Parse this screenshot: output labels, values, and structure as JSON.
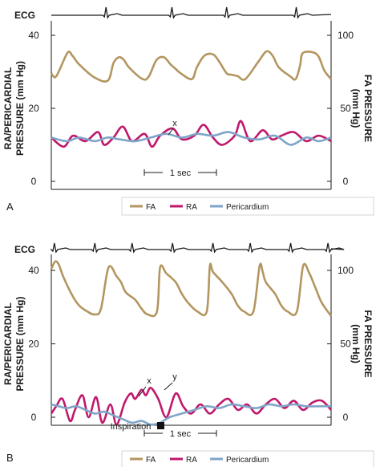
{
  "chart_data": [
    {
      "panel_label": "A",
      "type": "line",
      "time_scale_label": "1 sec",
      "ecg_label": "ECG",
      "left_axis": {
        "label_line1": "RA/PERICARDIAL",
        "label_line2": "PRESSURE (mm Hg)",
        "ticks": [
          "0",
          "20",
          "40"
        ],
        "ylim": [
          0,
          40
        ]
      },
      "right_axis": {
        "label_line1": "FA PRESSURE",
        "label_line2": "(mm Hg)",
        "ticks": [
          "0",
          "50",
          "100"
        ],
        "ylim": [
          0,
          100
        ]
      },
      "annotations": [
        "x"
      ],
      "legend": [
        "FA",
        "RA",
        "Pericardium"
      ],
      "series": [
        {
          "name": "FA",
          "axis": "right",
          "color": "#b39660",
          "t": [
            0.0,
            0.08,
            0.26,
            0.34,
            0.45,
            0.7,
            0.91,
            1.0,
            1.09,
            1.17,
            1.25,
            1.47,
            1.57,
            1.69,
            1.81,
            1.92,
            2.0,
            2.08,
            2.26,
            2.34,
            2.46,
            2.6,
            2.7,
            2.82,
            2.9,
            3.0,
            3.12,
            3.33,
            3.46,
            3.56,
            3.66,
            3.84,
            3.93,
            4.0,
            4.05,
            4.27,
            4.39,
            4.5
          ],
          "values": [
            74,
            72,
            88,
            86,
            80,
            71,
            69,
            81,
            85,
            83,
            78,
            70,
            72,
            83,
            85,
            80,
            77,
            74,
            70,
            78,
            86,
            87,
            82,
            74,
            73,
            72,
            70,
            82,
            89,
            86,
            78,
            72,
            70,
            79,
            88,
            87,
            76,
            70
          ]
        },
        {
          "name": "RA",
          "axis": "left",
          "color": "#c0186c",
          "t": [
            0.0,
            0.2,
            0.35,
            0.55,
            0.75,
            0.85,
            1.0,
            1.15,
            1.3,
            1.5,
            1.62,
            1.75,
            1.95,
            2.1,
            2.3,
            2.45,
            2.6,
            2.75,
            2.95,
            3.05,
            3.2,
            3.4,
            3.55,
            3.7,
            3.9,
            4.1,
            4.3,
            4.5
          ],
          "values": [
            12,
            9.5,
            12.5,
            11,
            13.5,
            10,
            12,
            15,
            11,
            13,
            9.5,
            12.5,
            14.5,
            11.5,
            12.5,
            15.5,
            12,
            10,
            12.5,
            16.5,
            11,
            14,
            11.5,
            12.5,
            13.5,
            11,
            12.5,
            11
          ]
        },
        {
          "name": "Pericardium",
          "axis": "left",
          "color": "#7fa5c8",
          "t": [
            0.0,
            0.25,
            0.45,
            0.7,
            0.9,
            1.1,
            1.35,
            1.6,
            1.85,
            2.1,
            2.35,
            2.6,
            2.85,
            3.1,
            3.35,
            3.6,
            3.85,
            4.1,
            4.3,
            4.5
          ],
          "values": [
            12,
            11,
            12,
            11,
            12,
            11.5,
            11,
            12,
            13,
            12,
            13,
            12.5,
            13.5,
            12,
            11.5,
            12.5,
            10,
            12,
            11,
            12
          ]
        }
      ]
    },
    {
      "panel_label": "B",
      "type": "line",
      "time_scale_label": "1 sec",
      "ecg_label": "ECG",
      "left_axis": {
        "label_line1": "RA/PERICARDIAL",
        "label_line2": "PRESSURE (mm Hg)",
        "ticks": [
          "0",
          "20",
          "40"
        ],
        "ylim": [
          0,
          40
        ]
      },
      "right_axis": {
        "label_line1": "FA PRESSURE",
        "label_line2": "(mm Hg)",
        "ticks": [
          "0",
          "50",
          "100"
        ],
        "ylim": [
          0,
          100
        ]
      },
      "annotations": [
        "x",
        "y",
        "Inspiration"
      ],
      "legend": [
        "FA",
        "RA",
        "Pericardium"
      ],
      "series": [
        {
          "name": "FA",
          "axis": "right",
          "color": "#b39660",
          "t": [
            0.0,
            0.06,
            0.12,
            0.2,
            0.35,
            0.45,
            0.58,
            0.7,
            0.8,
            0.92,
            1.05,
            1.12,
            1.2,
            1.35,
            1.45,
            1.55,
            1.7,
            1.75,
            1.85,
            2.0,
            2.1,
            2.2,
            2.35,
            2.5,
            2.55,
            2.6,
            2.75,
            2.9,
            3.0,
            3.1,
            3.25,
            3.35,
            3.4,
            3.45,
            3.6,
            3.7,
            3.8,
            3.95,
            4.05,
            4.15,
            4.25,
            4.35,
            4.5
          ],
          "values": [
            101,
            106,
            104,
            95,
            82,
            76,
            72,
            70,
            74,
            102,
            96,
            92,
            85,
            80,
            74,
            70,
            72,
            102,
            98,
            92,
            84,
            78,
            72,
            72,
            103,
            99,
            92,
            84,
            76,
            72,
            72,
            103,
            99,
            92,
            84,
            76,
            72,
            72,
            103,
            98,
            88,
            78,
            69
          ]
        },
        {
          "name": "RA",
          "axis": "left",
          "color": "#c0186c",
          "t": [
            0.0,
            0.08,
            0.18,
            0.3,
            0.38,
            0.5,
            0.6,
            0.72,
            0.82,
            0.95,
            1.05,
            1.18,
            1.28,
            1.35,
            1.45,
            1.52,
            1.6,
            1.72,
            1.85,
            2.0,
            2.12,
            2.25,
            2.4,
            2.55,
            2.7,
            2.85,
            3.0,
            3.15,
            3.3,
            3.45,
            3.6,
            3.75,
            3.9,
            4.05,
            4.2,
            4.35,
            4.5
          ],
          "values": [
            1,
            3,
            5,
            -1,
            2,
            6,
            0,
            5.5,
            -1.5,
            3.5,
            -2,
            4,
            6.5,
            5,
            7.5,
            6,
            8,
            5,
            0,
            6.5,
            3,
            1,
            3.5,
            1,
            3.5,
            5,
            2,
            3.5,
            1,
            3.5,
            5,
            2.5,
            4.5,
            2,
            4,
            4.5,
            2
          ]
        },
        {
          "name": "Pericardium",
          "axis": "left",
          "color": "#7fa5c8",
          "t": [
            0.0,
            0.12,
            0.25,
            0.4,
            0.55,
            0.7,
            0.85,
            1.0,
            1.15,
            1.3,
            1.45,
            1.6,
            1.75,
            1.9,
            2.1,
            2.3,
            2.5,
            2.7,
            2.9,
            3.1,
            3.3,
            3.5,
            3.7,
            3.9,
            4.1,
            4.3,
            4.5
          ],
          "values": [
            3.5,
            3,
            2.5,
            3,
            2,
            1,
            1.5,
            0.5,
            -0.5,
            -1.5,
            -1,
            -2,
            -1.5,
            0,
            1,
            2,
            3,
            2.5,
            3.5,
            3,
            2.5,
            3.5,
            3,
            3.5,
            3,
            3,
            3
          ]
        }
      ]
    }
  ]
}
